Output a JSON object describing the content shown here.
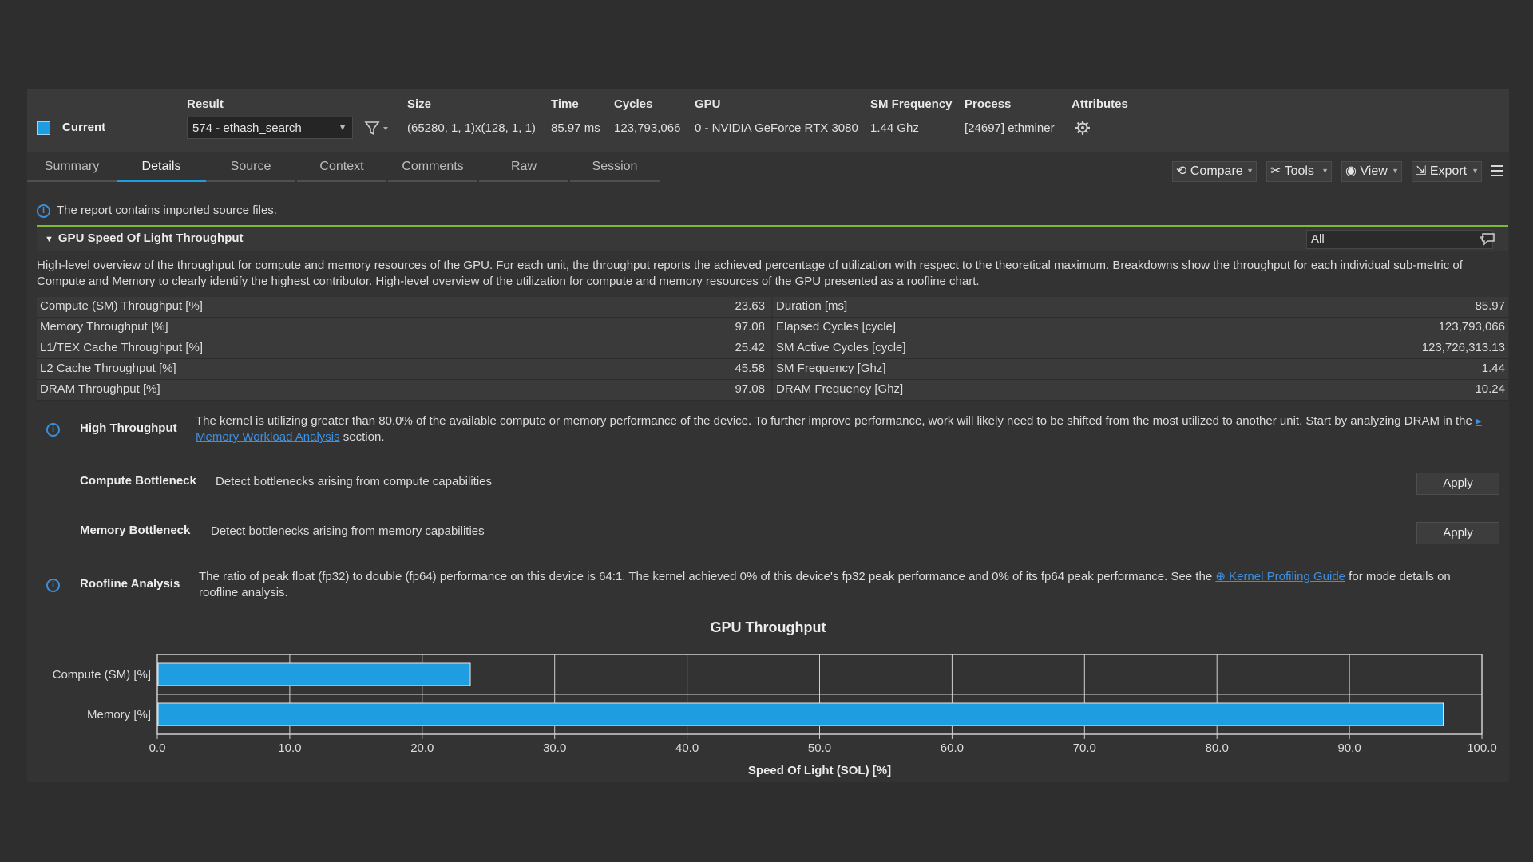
{
  "header": {
    "current_label": "Current",
    "columns": {
      "result": {
        "label": "Result",
        "value": "574 - ethash_search"
      },
      "size": {
        "label": "Size",
        "value": "(65280, 1, 1)x(128, 1, 1)"
      },
      "time": {
        "label": "Time",
        "value": "85.97 ms"
      },
      "cycles": {
        "label": "Cycles",
        "value": "123,793,066"
      },
      "gpu": {
        "label": "GPU",
        "value": "0 - NVIDIA GeForce RTX 3080"
      },
      "sm_frequency": {
        "label": "SM Frequency",
        "value": "1.44 Ghz"
      },
      "process": {
        "label": "Process",
        "value": "[24697] ethminer"
      },
      "attributes": {
        "label": "Attributes"
      }
    },
    "swatch_color": "#1e9de0"
  },
  "tabs": [
    {
      "label": "Summary",
      "active": false
    },
    {
      "label": "Details",
      "active": true
    },
    {
      "label": "Source",
      "active": false
    },
    {
      "label": "Context",
      "active": false
    },
    {
      "label": "Comments",
      "active": false
    },
    {
      "label": "Raw",
      "active": false
    },
    {
      "label": "Session",
      "active": false
    }
  ],
  "toolbar": {
    "compare": "Compare",
    "tools": "Tools",
    "view": "View",
    "export": "Export"
  },
  "notice": "The report contains imported source files.",
  "section": {
    "title": "GPU Speed Of Light Throughput",
    "filter_value": "All",
    "accent_color": "#7cb83a",
    "description": "High-level overview of the throughput for compute and memory resources of the GPU. For each unit, the throughput reports the achieved percentage of utilization with respect to the theoretical maximum. Breakdowns show the throughput for each individual sub-metric of Compute and Memory to clearly identify the highest contributor. High-level overview of the utilization for compute and memory resources of the GPU presented as a roofline chart."
  },
  "metrics": {
    "left": [
      {
        "name": "Compute (SM) Throughput [%]",
        "value": "23.63"
      },
      {
        "name": "Memory Throughput [%]",
        "value": "97.08"
      },
      {
        "name": "L1/TEX Cache Throughput [%]",
        "value": "25.42"
      },
      {
        "name": "L2 Cache Throughput [%]",
        "value": "45.58"
      },
      {
        "name": "DRAM Throughput [%]",
        "value": "97.08"
      }
    ],
    "right": [
      {
        "name": "Duration [ms]",
        "value": "85.97"
      },
      {
        "name": "Elapsed Cycles [cycle]",
        "value": "123,793,066"
      },
      {
        "name": "SM Active Cycles [cycle]",
        "value": "123,726,313.13"
      },
      {
        "name": "SM Frequency [Ghz]",
        "value": "1.44"
      },
      {
        "name": "DRAM Frequency [Ghz]",
        "value": "10.24"
      }
    ]
  },
  "rules": {
    "high_throughput": {
      "title": "High Throughput",
      "text_before": "The kernel is utilizing greater than 80.0% of the available compute or memory performance of the device. To further improve performance, work will likely need to be shifted from the most utilized to another unit. Start by analyzing DRAM in the ",
      "link": "Memory Workload Analysis",
      "text_after": " section."
    },
    "compute_bottleneck": {
      "title": "Compute Bottleneck",
      "text": "Detect bottlenecks arising from compute capabilities",
      "button": "Apply"
    },
    "memory_bottleneck": {
      "title": "Memory Bottleneck",
      "text": "Detect bottlenecks arising from memory capabilities",
      "button": "Apply"
    },
    "roofline": {
      "title": "Roofline Analysis",
      "text_before": "The ratio of peak float (fp32) to double (fp64) performance on this device is 64:1. The kernel achieved 0% of this device's fp32 peak performance and 0% of its fp64 peak performance. See the ",
      "link": "Kernel Profiling Guide",
      "text_after": " for mode details on roofline analysis."
    }
  },
  "chart_data": {
    "type": "bar",
    "orientation": "horizontal",
    "title": "GPU Throughput",
    "categories": [
      "Compute (SM) [%]",
      "Memory [%]"
    ],
    "values": [
      23.63,
      97.08
    ],
    "xlabel": "Speed Of Light (SOL) [%]",
    "ylabel": "",
    "xlim": [
      0,
      100
    ],
    "ticks": [
      "0.0",
      "10.0",
      "20.0",
      "30.0",
      "40.0",
      "50.0",
      "60.0",
      "70.0",
      "80.0",
      "90.0",
      "100.0"
    ],
    "grid": true,
    "bar_color": "#1e9de0"
  }
}
